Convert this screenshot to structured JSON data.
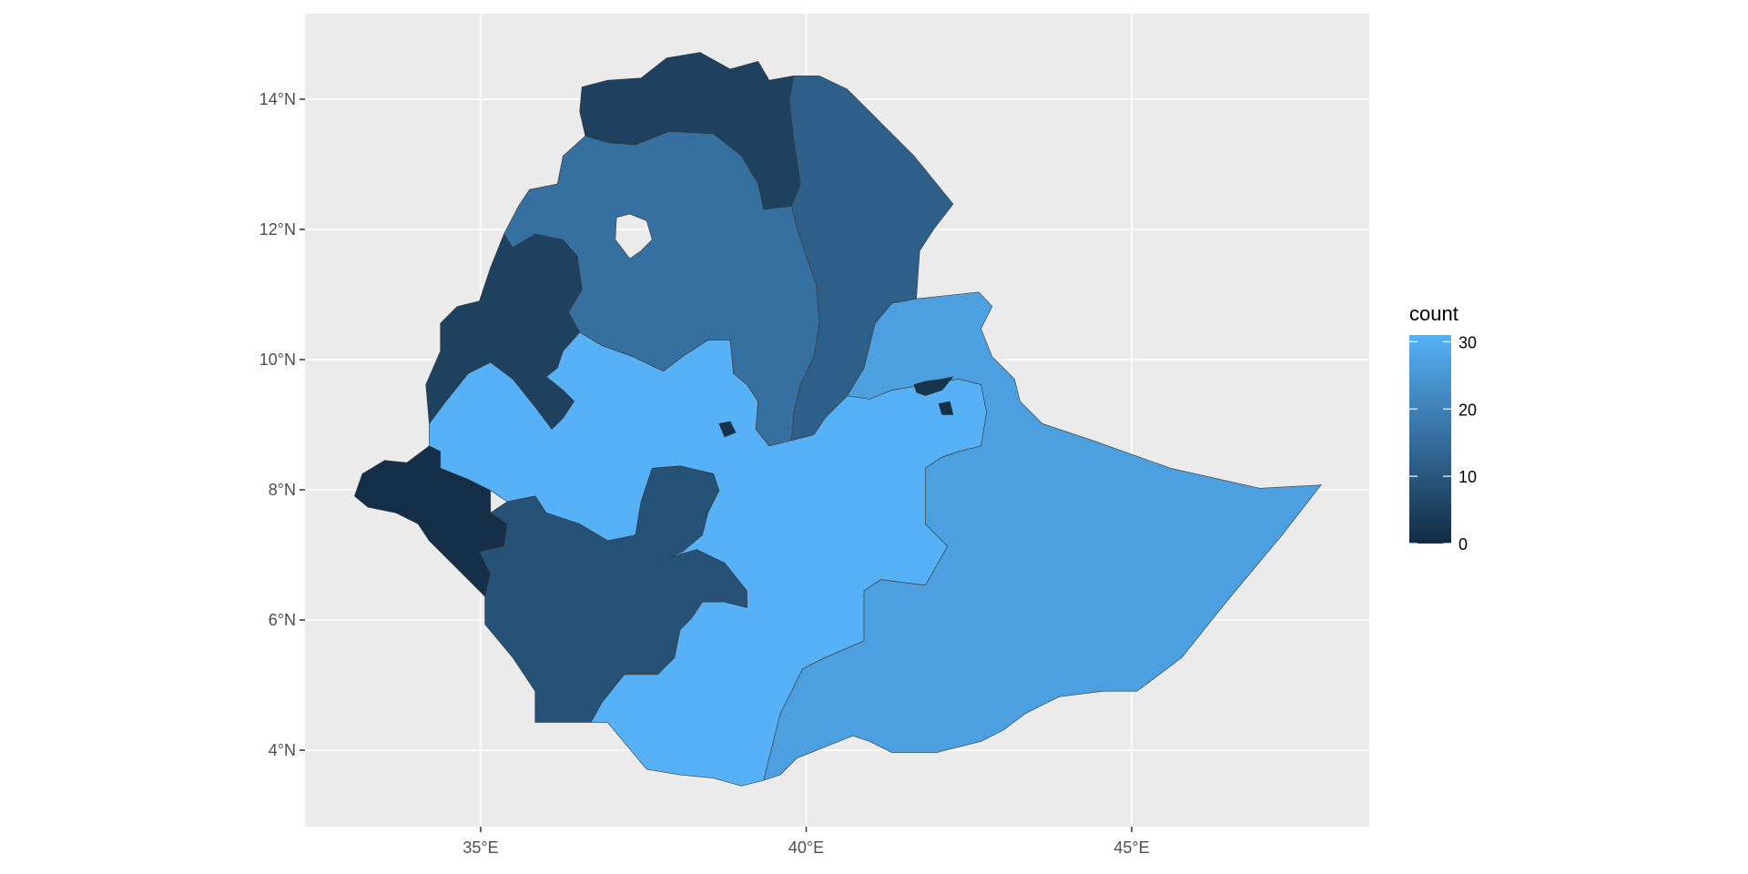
{
  "chart_data": {
    "type": "choropleth",
    "title": "",
    "xlabel": "",
    "ylabel": "",
    "x_ticks": [
      {
        "value": 35,
        "label": "35°E"
      },
      {
        "value": 40,
        "label": "40°E"
      },
      {
        "value": 45,
        "label": "45°E"
      }
    ],
    "y_ticks": [
      {
        "value": 4,
        "label": "4°N"
      },
      {
        "value": 6,
        "label": "6°N"
      },
      {
        "value": 8,
        "label": "8°N"
      },
      {
        "value": 10,
        "label": "10°N"
      },
      {
        "value": 12,
        "label": "12°N"
      },
      {
        "value": 14,
        "label": "14°N"
      }
    ],
    "xlim": [
      32.2,
      48.6
    ],
    "ylim": [
      2.9,
      15.3
    ],
    "grid": true,
    "legend": {
      "title": "count",
      "position": "right",
      "range": [
        0,
        31
      ],
      "ticks": [
        {
          "value": 0,
          "label": "0"
        },
        {
          "value": 10,
          "label": "10"
        },
        {
          "value": 20,
          "label": "20"
        },
        {
          "value": 30,
          "label": "30"
        }
      ],
      "low_color": "#132B43",
      "high_color": "#56B1F7"
    },
    "regions": [
      {
        "id": "oromia",
        "count": 31
      },
      {
        "id": "somali",
        "count": 27
      },
      {
        "id": "tigray",
        "count": 5
      },
      {
        "id": "afar",
        "count": 12
      },
      {
        "id": "amhara",
        "count": 16
      },
      {
        "id": "benishangul-gumuz",
        "count": 5
      },
      {
        "id": "gambela",
        "count": 1
      },
      {
        "id": "snnpr",
        "count": 9
      },
      {
        "id": "dire-dawa",
        "count": 2
      },
      {
        "id": "harari",
        "count": 1
      },
      {
        "id": "addis-ababa",
        "count": 2
      }
    ],
    "panel_background": "#EBEBEB"
  }
}
